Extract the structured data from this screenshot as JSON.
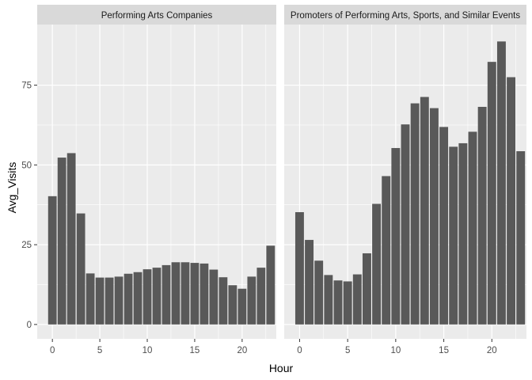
{
  "chart_data": {
    "type": "bar",
    "xlabel": "Hour",
    "ylabel": "Avg_Visits",
    "x_ticks": [
      0,
      5,
      10,
      15,
      20
    ],
    "y_ticks": [
      0,
      25,
      50,
      75
    ],
    "ylim": [
      -4.5,
      94
    ],
    "xlim": [
      -1.6,
      23.6
    ],
    "grid": true,
    "colors": {
      "panel_bg": "#EBEBEB",
      "strip_bg": "#D9D9D9",
      "bar": "#595959",
      "grid": "#FFFFFF",
      "text": "#4D4D4D",
      "title_text": "#000000"
    },
    "facets": [
      {
        "title": "Performing Arts Companies",
        "hours": [
          0,
          1,
          2,
          3,
          4,
          5,
          6,
          7,
          8,
          9,
          10,
          11,
          12,
          13,
          14,
          15,
          16,
          17,
          18,
          19,
          20,
          21,
          22,
          23
        ],
        "values": [
          40.2,
          52.3,
          53.7,
          34.8,
          16.0,
          14.7,
          14.7,
          15.0,
          15.9,
          16.4,
          17.3,
          17.8,
          18.6,
          19.5,
          19.5,
          19.3,
          19.1,
          17.2,
          14.8,
          12.3,
          11.2,
          15.0,
          17.8,
          24.7
        ]
      },
      {
        "title": "Promoters of Performing Arts, Sports, and Similar Events",
        "hours": [
          0,
          1,
          2,
          3,
          4,
          5,
          6,
          7,
          8,
          9,
          10,
          11,
          12,
          13,
          14,
          15,
          16,
          17,
          18,
          19,
          20,
          21,
          22,
          23
        ],
        "values": [
          35.2,
          26.5,
          20.0,
          15.5,
          13.8,
          13.5,
          15.7,
          22.3,
          37.8,
          46.5,
          55.3,
          62.7,
          69.3,
          71.3,
          67.8,
          61.9,
          55.7,
          56.8,
          60.4,
          68.2,
          82.3,
          88.7,
          77.5,
          54.3
        ]
      }
    ]
  }
}
